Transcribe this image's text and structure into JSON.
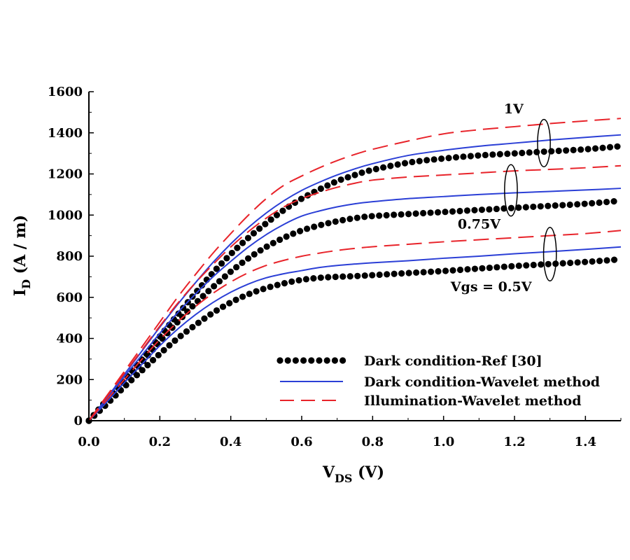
{
  "chart_data": {
    "type": "line",
    "title": "",
    "xlabel": {
      "main": "V",
      "sub": "DS",
      "unit": " (V)"
    },
    "ylabel": {
      "main": "I",
      "sub": "D",
      "unit": " (A / m)"
    },
    "xlim": [
      0,
      1.5
    ],
    "ylim": [
      0,
      1600
    ],
    "xticks": [
      "0.0",
      "0.2",
      "0.4",
      "0.6",
      "0.8",
      "1.0",
      "1.2",
      "1.4"
    ],
    "xtick_values": [
      0,
      0.2,
      0.4,
      0.6,
      0.8,
      1.0,
      1.2,
      1.4
    ],
    "yticks": [
      "0",
      "200",
      "400",
      "600",
      "800",
      "1000",
      "1200",
      "1400",
      "1600"
    ],
    "ytick_values": [
      0,
      200,
      400,
      600,
      800,
      1000,
      1200,
      1400,
      1600
    ],
    "grid": false,
    "legend_position": "bottom-right",
    "legend": [
      {
        "label": "Dark condition-Ref [30]",
        "style": "dotted",
        "color": "#000000"
      },
      {
        "label": "Dark condition-Wavelet method",
        "style": "solid",
        "color": "#2b3fd6"
      },
      {
        "label": "Illumination-Wavelet method",
        "style": "dashed",
        "color": "#e8232a"
      }
    ],
    "annotations": [
      {
        "text": "1V",
        "x": 1.17,
        "y": 1495
      },
      {
        "text": "0.75V",
        "x": 1.04,
        "y": 935
      },
      {
        "text": "Vgs = 0.5V",
        "x": 1.02,
        "y": 630
      }
    ],
    "group_markers": [
      {
        "label": "1V",
        "x": 1.283,
        "y": 1350,
        "rx": 0.018,
        "ry": 115
      },
      {
        "label": "0.75V",
        "x": 1.19,
        "y": 1120,
        "rx": 0.018,
        "ry": 125
      },
      {
        "label": "0.5V",
        "x": 1.3,
        "y": 810,
        "rx": 0.018,
        "ry": 130
      }
    ],
    "series": [
      {
        "name": "Dark condition-Ref [30]",
        "vgs": "1V",
        "style": "dotted",
        "x": [
          0,
          0.05,
          0.1,
          0.15,
          0.2,
          0.25,
          0.3,
          0.35,
          0.4,
          0.45,
          0.5,
          0.55,
          0.6,
          0.65,
          0.7,
          0.75,
          0.8,
          0.9,
          1.0,
          1.1,
          1.2,
          1.3,
          1.4,
          1.5
        ],
        "y": [
          0,
          100,
          200,
          300,
          410,
          515,
          620,
          720,
          810,
          890,
          960,
          1025,
          1080,
          1125,
          1165,
          1195,
          1220,
          1255,
          1275,
          1290,
          1300,
          1310,
          1320,
          1335
        ]
      },
      {
        "name": "Dark condition-Ref [30]",
        "vgs": "0.75V",
        "style": "dotted",
        "x": [
          0,
          0.05,
          0.1,
          0.15,
          0.2,
          0.25,
          0.3,
          0.35,
          0.4,
          0.45,
          0.5,
          0.55,
          0.6,
          0.65,
          0.7,
          0.75,
          0.8,
          0.9,
          1.0,
          1.1,
          1.2,
          1.3,
          1.4,
          1.5
        ],
        "y": [
          0,
          95,
          190,
          285,
          385,
          480,
          570,
          650,
          725,
          790,
          845,
          890,
          925,
          950,
          970,
          985,
          995,
          1005,
          1015,
          1025,
          1035,
          1045,
          1055,
          1070
        ]
      },
      {
        "name": "Dark condition-Ref [30]",
        "vgs": "0.5V",
        "style": "dotted",
        "x": [
          0,
          0.05,
          0.1,
          0.15,
          0.2,
          0.25,
          0.3,
          0.35,
          0.4,
          0.45,
          0.5,
          0.55,
          0.6,
          0.65,
          0.7,
          0.75,
          0.8,
          0.9,
          1.0,
          1.1,
          1.2,
          1.3,
          1.4,
          1.5
        ],
        "y": [
          0,
          80,
          165,
          245,
          325,
          400,
          465,
          525,
          575,
          615,
          645,
          668,
          685,
          695,
          700,
          703,
          708,
          718,
          728,
          740,
          752,
          762,
          772,
          785
        ]
      },
      {
        "name": "Dark condition-Wavelet method",
        "vgs": "1V",
        "style": "solid",
        "x": [
          0,
          0.05,
          0.1,
          0.15,
          0.2,
          0.25,
          0.3,
          0.35,
          0.4,
          0.45,
          0.5,
          0.55,
          0.6,
          0.65,
          0.7,
          0.75,
          0.8,
          0.9,
          1.0,
          1.1,
          1.2,
          1.3,
          1.4,
          1.5
        ],
        "y": [
          0,
          110,
          225,
          340,
          455,
          565,
          670,
          770,
          860,
          940,
          1010,
          1070,
          1120,
          1160,
          1195,
          1225,
          1250,
          1290,
          1315,
          1335,
          1350,
          1365,
          1378,
          1390
        ]
      },
      {
        "name": "Dark condition-Wavelet method",
        "vgs": "0.75V",
        "style": "solid",
        "x": [
          0,
          0.05,
          0.1,
          0.15,
          0.2,
          0.25,
          0.3,
          0.35,
          0.4,
          0.45,
          0.5,
          0.55,
          0.6,
          0.65,
          0.7,
          0.75,
          0.8,
          0.9,
          1.0,
          1.1,
          1.2,
          1.3,
          1.4,
          1.5
        ],
        "y": [
          0,
          105,
          215,
          320,
          425,
          525,
          615,
          700,
          775,
          845,
          905,
          955,
          995,
          1020,
          1040,
          1055,
          1065,
          1080,
          1090,
          1100,
          1108,
          1115,
          1122,
          1130
        ]
      },
      {
        "name": "Dark condition-Wavelet method",
        "vgs": "0.5V",
        "style": "solid",
        "x": [
          0,
          0.05,
          0.1,
          0.15,
          0.2,
          0.25,
          0.3,
          0.35,
          0.4,
          0.45,
          0.5,
          0.55,
          0.6,
          0.65,
          0.7,
          0.75,
          0.8,
          0.9,
          1.0,
          1.1,
          1.2,
          1.3,
          1.4,
          1.5
        ],
        "y": [
          0,
          90,
          185,
          275,
          365,
          445,
          515,
          575,
          625,
          665,
          695,
          715,
          730,
          745,
          755,
          762,
          768,
          778,
          790,
          800,
          812,
          822,
          833,
          845
        ]
      },
      {
        "name": "Illumination-Wavelet method",
        "vgs": "1V",
        "style": "dashed",
        "x": [
          0,
          0.05,
          0.1,
          0.15,
          0.2,
          0.25,
          0.3,
          0.35,
          0.4,
          0.45,
          0.5,
          0.55,
          0.6,
          0.65,
          0.7,
          0.75,
          0.8,
          0.9,
          1.0,
          1.1,
          1.2,
          1.3,
          1.4,
          1.5
        ],
        "y": [
          0,
          120,
          240,
          360,
          480,
          600,
          710,
          815,
          910,
          1000,
          1080,
          1145,
          1190,
          1230,
          1265,
          1295,
          1320,
          1360,
          1395,
          1415,
          1430,
          1445,
          1458,
          1470
        ]
      },
      {
        "name": "Illumination-Wavelet method",
        "vgs": "0.75V",
        "style": "dashed",
        "x": [
          0,
          0.05,
          0.1,
          0.15,
          0.2,
          0.25,
          0.3,
          0.35,
          0.4,
          0.45,
          0.5,
          0.55,
          0.6,
          0.65,
          0.7,
          0.75,
          0.8,
          0.9,
          1.0,
          1.1,
          1.2,
          1.3,
          1.4,
          1.5
        ],
        "y": [
          0,
          115,
          230,
          345,
          460,
          570,
          670,
          760,
          845,
          920,
          985,
          1040,
          1080,
          1110,
          1135,
          1155,
          1170,
          1185,
          1195,
          1205,
          1215,
          1222,
          1230,
          1240
        ]
      },
      {
        "name": "Illumination-Wavelet method",
        "vgs": "0.5V",
        "style": "dashed",
        "x": [
          0,
          0.05,
          0.1,
          0.15,
          0.2,
          0.25,
          0.3,
          0.35,
          0.4,
          0.45,
          0.5,
          0.55,
          0.6,
          0.65,
          0.7,
          0.75,
          0.8,
          0.9,
          1.0,
          1.1,
          1.2,
          1.3,
          1.4,
          1.5
        ],
        "y": [
          0,
          100,
          200,
          300,
          395,
          480,
          555,
          620,
          675,
          720,
          755,
          780,
          800,
          815,
          828,
          838,
          846,
          858,
          870,
          880,
          890,
          900,
          910,
          925
        ]
      }
    ]
  }
}
